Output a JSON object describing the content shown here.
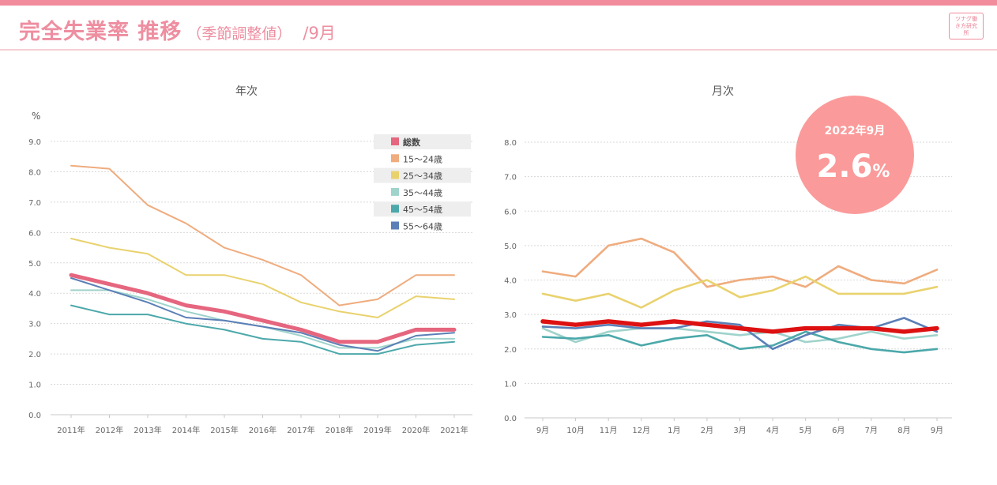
{
  "header": {
    "title": "完全失業率 推移",
    "subtitle": "（季節調整値）",
    "month": "/9月",
    "logo_text": "ツナグ働き方研究所"
  },
  "colors": {
    "accent": "#f08c9c",
    "total_annual": "#e5667e",
    "total_monthly": "#dd1111",
    "age_15_24": "#efac7e",
    "age_25_34": "#e9d26e",
    "age_35_44": "#9fd3cb",
    "age_45_54": "#4ca8aa",
    "age_55_64": "#5b7fb6",
    "badge": "#fb9a9a"
  },
  "chart_data": [
    {
      "type": "line",
      "title": "年次",
      "ylabel": "%",
      "ylim": [
        0,
        9
      ],
      "yticks": [
        "0.0",
        "1.0",
        "2.0",
        "3.0",
        "4.0",
        "5.0",
        "6.0",
        "7.0",
        "8.0",
        "9.0"
      ],
      "categories": [
        "2011年",
        "2012年",
        "2013年",
        "2014年",
        "2015年",
        "2016年",
        "2017年",
        "2018年",
        "2019年",
        "2020年",
        "2021年"
      ],
      "grid": true,
      "legend_position": "top-right",
      "series": [
        {
          "name": "15～24歳",
          "color": "#efac7e",
          "values": [
            8.2,
            8.1,
            6.9,
            6.3,
            5.5,
            5.1,
            4.6,
            3.6,
            3.8,
            4.6,
            4.6
          ]
        },
        {
          "name": "25～34歳",
          "color": "#e9d26e",
          "values": [
            5.8,
            5.5,
            5.3,
            4.6,
            4.6,
            4.3,
            3.7,
            3.4,
            3.2,
            3.9,
            3.8
          ]
        },
        {
          "name": "35～44歳",
          "color": "#9fd3cb",
          "values": [
            4.1,
            4.1,
            3.8,
            3.4,
            3.1,
            2.9,
            2.6,
            2.2,
            2.2,
            2.5,
            2.5
          ]
        },
        {
          "name": "45～54歳",
          "color": "#4ca8aa",
          "values": [
            3.6,
            3.3,
            3.3,
            3.0,
            2.8,
            2.5,
            2.4,
            2.0,
            2.0,
            2.3,
            2.4
          ]
        },
        {
          "name": "55～64歳",
          "color": "#5b7fb6",
          "values": [
            4.5,
            4.1,
            3.7,
            3.2,
            3.1,
            2.9,
            2.7,
            2.3,
            2.1,
            2.6,
            2.7
          ]
        },
        {
          "name": "総数",
          "color": "#e5667e",
          "values": [
            4.6,
            4.3,
            4.0,
            3.6,
            3.4,
            3.1,
            2.8,
            2.4,
            2.4,
            2.8,
            2.8
          ]
        }
      ]
    },
    {
      "type": "line",
      "title": "月次",
      "ylim": [
        0,
        8
      ],
      "yticks": [
        "0.0",
        "1.0",
        "2.0",
        "3.0",
        "4.0",
        "5.0",
        "6.0",
        "7.0",
        "8.0"
      ],
      "categories": [
        "9月",
        "10月",
        "11月",
        "12月",
        "1月",
        "2月",
        "3月",
        "4月",
        "5月",
        "6月",
        "7月",
        "8月",
        "9月"
      ],
      "grid": true,
      "series": [
        {
          "color": "#efac7e",
          "values": [
            4.25,
            4.1,
            5.0,
            5.2,
            4.8,
            3.8,
            4.0,
            4.1,
            3.8,
            4.4,
            4.0,
            3.9,
            4.3
          ]
        },
        {
          "color": "#e9d26e",
          "values": [
            3.6,
            3.4,
            3.6,
            3.2,
            3.7,
            4.0,
            3.5,
            3.7,
            4.1,
            3.6,
            3.6,
            3.6,
            3.8
          ]
        },
        {
          "color": "#9fd3cb",
          "values": [
            2.6,
            2.2,
            2.5,
            2.6,
            2.6,
            2.5,
            2.4,
            2.5,
            2.2,
            2.3,
            2.5,
            2.3,
            2.4
          ]
        },
        {
          "color": "#4ca8aa",
          "values": [
            2.35,
            2.3,
            2.4,
            2.1,
            2.3,
            2.4,
            2.0,
            2.1,
            2.5,
            2.2,
            2.0,
            1.9,
            2.0
          ]
        },
        {
          "color": "#5b7fb6",
          "values": [
            2.65,
            2.6,
            2.7,
            2.6,
            2.6,
            2.8,
            2.7,
            2.0,
            2.4,
            2.7,
            2.6,
            2.9,
            2.5
          ]
        },
        {
          "color": "#dd1111",
          "values": [
            2.8,
            2.7,
            2.8,
            2.7,
            2.8,
            2.7,
            2.6,
            2.5,
            2.6,
            2.6,
            2.6,
            2.5,
            2.6
          ]
        }
      ],
      "annotation": {
        "label": "2022年9月",
        "value": "2.6",
        "unit": "%"
      }
    }
  ]
}
